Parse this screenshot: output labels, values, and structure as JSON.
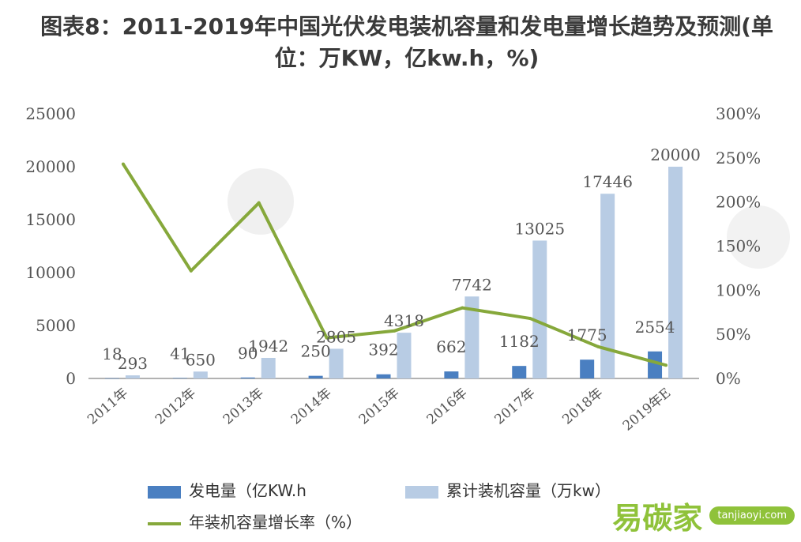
{
  "title": "图表8：2011-2019年中国光伏发电装机容量和发电量增长趋势及预测(单位：万KW，亿kw.h，%)",
  "colors": {
    "generation": "#4a7fc1",
    "capacity": "#b8cce4",
    "growth": "#86a83b"
  },
  "watermark": {
    "text": "易碳家",
    "url": "tanjiaoyi.com"
  },
  "chart_data": {
    "type": "bar",
    "categories": [
      "2011年",
      "2012年",
      "2013年",
      "2014年",
      "2015年",
      "2016年",
      "2017年",
      "2018年",
      "2019年E"
    ],
    "series": [
      {
        "name": "发电量（亿KW.h",
        "type": "bar",
        "axis": "left",
        "values": [
          18,
          41,
          90,
          250,
          392,
          662,
          1182,
          1775,
          2554
        ]
      },
      {
        "name": "累计装机容量（万kw）",
        "type": "bar",
        "axis": "left",
        "values": [
          293,
          650,
          1942,
          2805,
          4318,
          7742,
          13025,
          17446,
          20000
        ]
      },
      {
        "name": "年装机容量增长率（%）",
        "type": "line",
        "axis": "right",
        "values": [
          243,
          122,
          199,
          46,
          54,
          80,
          68,
          36,
          15
        ]
      }
    ],
    "y_left": {
      "min": 0,
      "max": 25000,
      "ticks": [
        "0",
        "5000",
        "10000",
        "15000",
        "20000",
        "25000"
      ]
    },
    "y_right": {
      "min": 0,
      "max": 300,
      "ticks": [
        "0%",
        "50%",
        "100%",
        "150%",
        "200%",
        "250%",
        "300%"
      ]
    },
    "grid": false,
    "legend_position": "bottom"
  }
}
